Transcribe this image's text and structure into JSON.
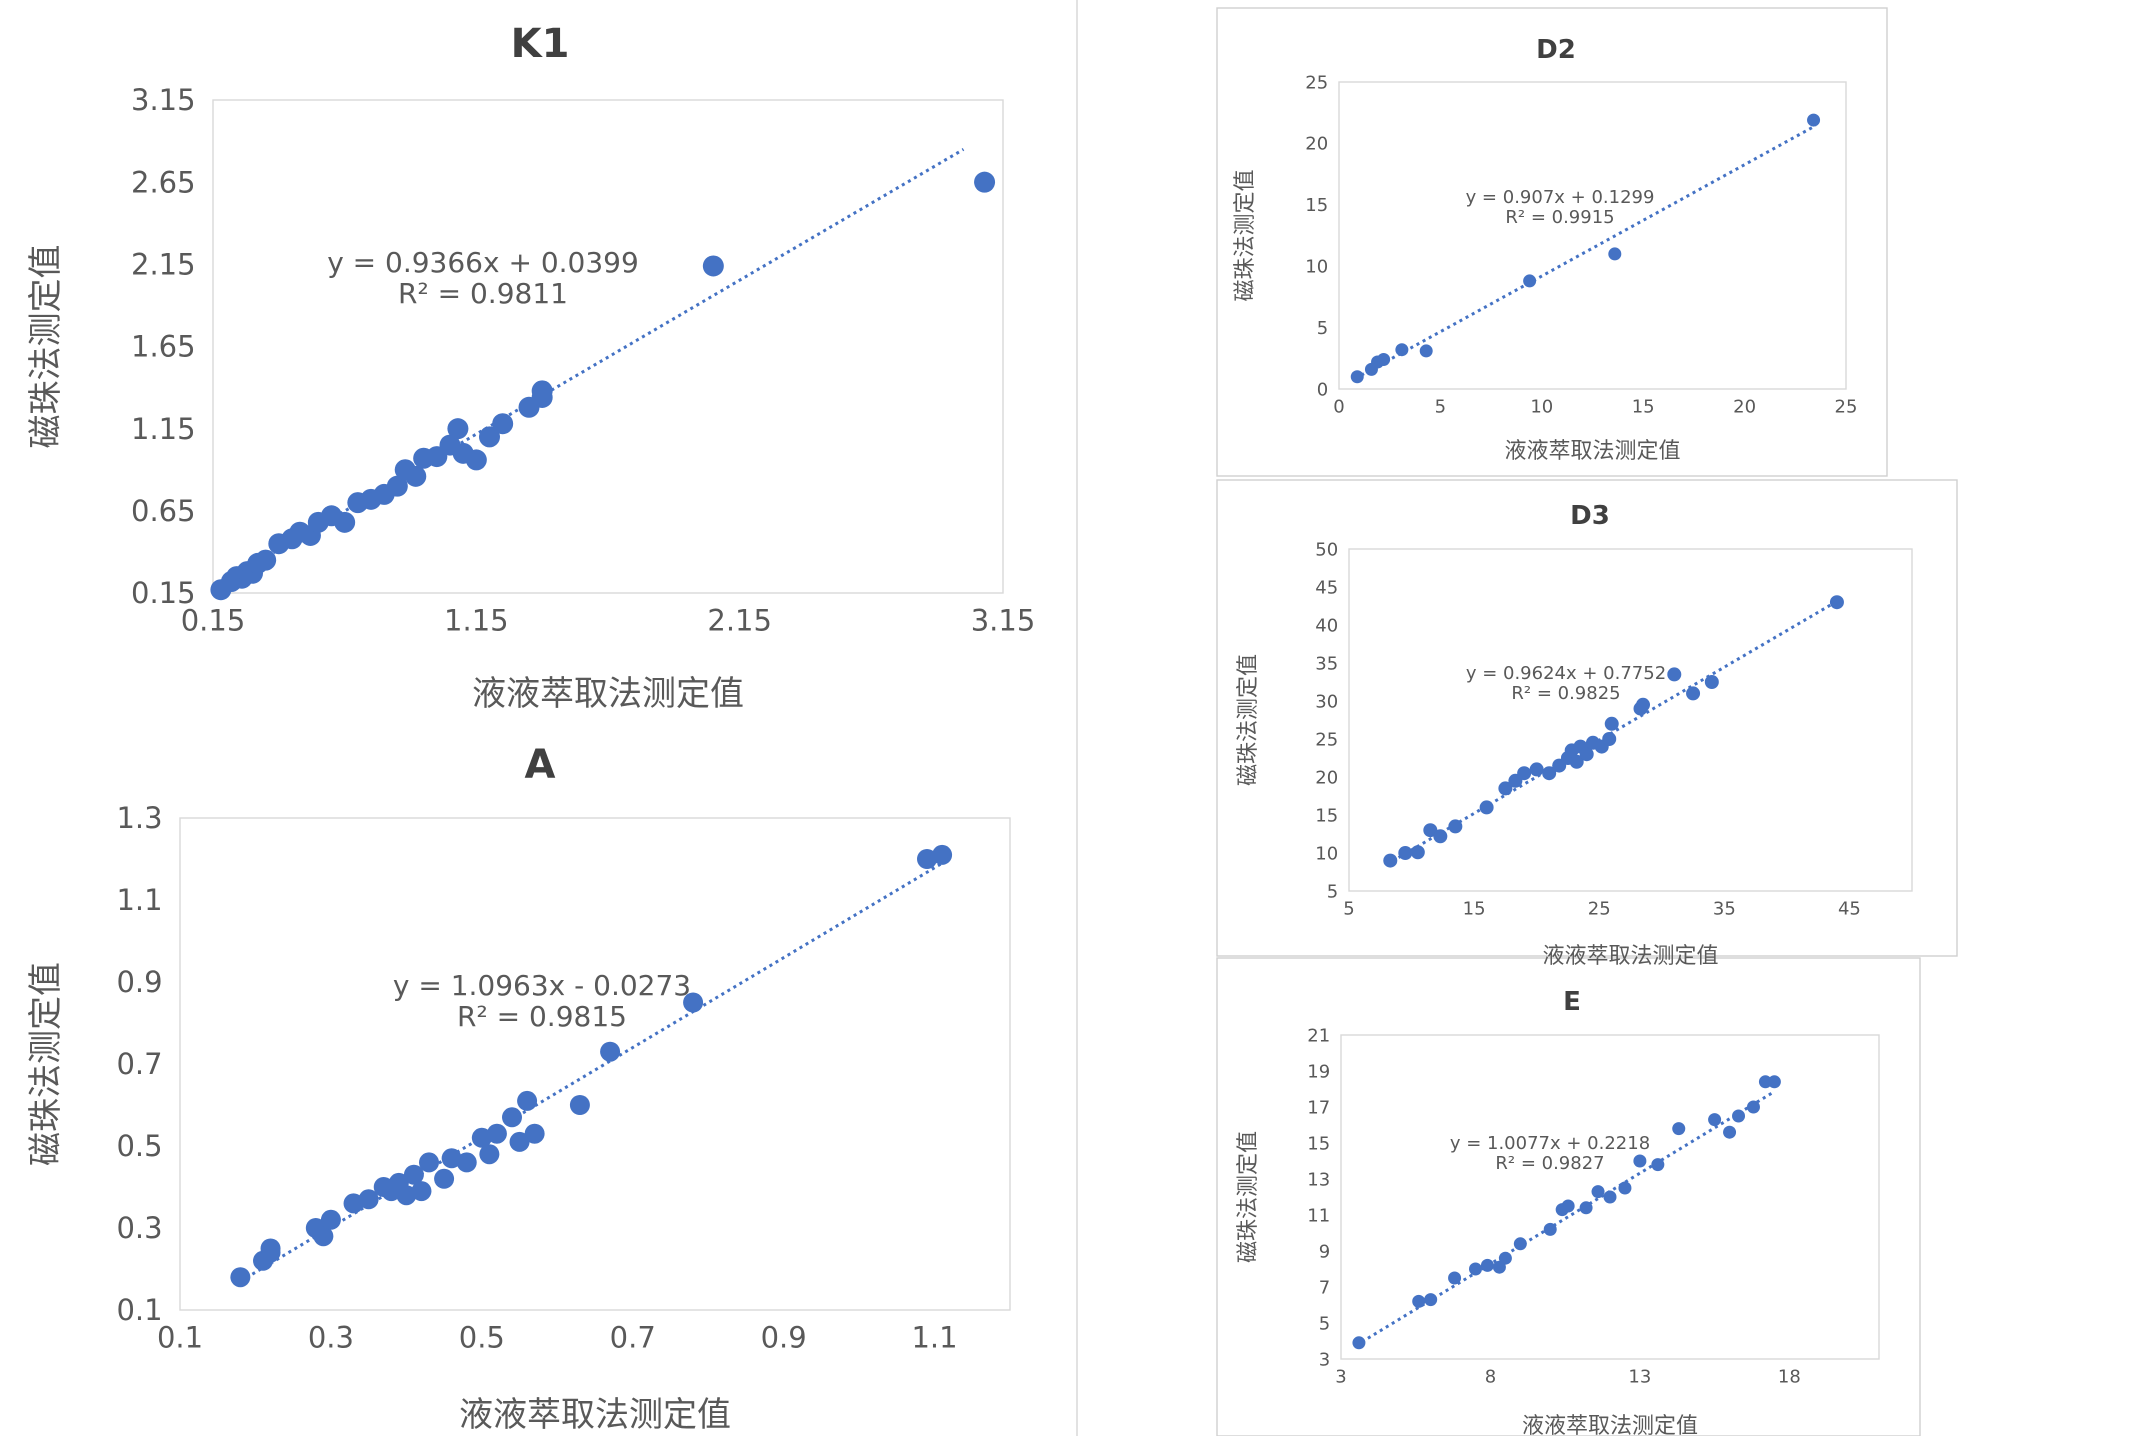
{
  "chart_data": [
    {
      "type": "scatter",
      "title": "K1",
      "xlabel": "液液萃取法测定值",
      "ylabel": "磁珠法测定值",
      "xlim": [
        0.15,
        3.15
      ],
      "ylim": [
        0.15,
        3.15
      ],
      "xticks": [
        "0.15",
        "1.15",
        "2.15",
        "3.15"
      ],
      "yticks": [
        "0.15",
        "0.65",
        "1.15",
        "1.65",
        "2.15",
        "2.65",
        "3.15"
      ],
      "equation": "y = 0.9366x + 0.0399",
      "r2": "R² = 0.9811",
      "trendline": {
        "slope": 0.9366,
        "intercept": 0.0399,
        "x_range": [
          0.15,
          3.0
        ]
      },
      "series": [
        {
          "x": [
            0.18,
            0.22,
            0.24,
            0.26,
            0.28,
            0.3,
            0.32,
            0.35,
            0.4,
            0.45,
            0.48,
            0.52,
            0.55,
            0.6,
            0.65,
            0.7,
            0.75,
            0.8,
            0.85,
            0.88,
            0.92,
            0.95,
            1.0,
            1.05,
            1.08,
            1.1,
            1.15,
            1.2,
            1.25,
            1.35,
            1.4,
            1.4,
            2.05,
            3.08
          ],
          "y": [
            0.17,
            0.22,
            0.25,
            0.24,
            0.28,
            0.27,
            0.33,
            0.35,
            0.45,
            0.48,
            0.52,
            0.5,
            0.58,
            0.62,
            0.58,
            0.7,
            0.72,
            0.75,
            0.8,
            0.9,
            0.86,
            0.97,
            0.98,
            1.05,
            1.15,
            1.0,
            0.96,
            1.1,
            1.18,
            1.28,
            1.34,
            1.38,
            2.14,
            2.65
          ]
        }
      ]
    },
    {
      "type": "scatter",
      "title": "A",
      "xlabel": "液液萃取法测定值",
      "ylabel": "磁珠法测定值",
      "xlim": [
        0.1,
        1.2
      ],
      "ylim": [
        0.1,
        1.3
      ],
      "xticks": [
        "0.1",
        "0.3",
        "0.5",
        "0.7",
        "0.9",
        "1.1"
      ],
      "yticks": [
        "0.1",
        "0.3",
        "0.5",
        "0.7",
        "0.9",
        "1.1",
        "1.3"
      ],
      "equation": "y = 1.0963x - 0.0273",
      "r2": "R² = 0.9815",
      "trendline": {
        "slope": 1.0963,
        "intercept": -0.0273,
        "x_range": [
          0.18,
          1.11
        ]
      },
      "series": [
        {
          "x": [
            0.18,
            0.21,
            0.22,
            0.22,
            0.28,
            0.29,
            0.3,
            0.33,
            0.35,
            0.37,
            0.38,
            0.39,
            0.4,
            0.41,
            0.42,
            0.43,
            0.45,
            0.46,
            0.48,
            0.5,
            0.51,
            0.52,
            0.54,
            0.55,
            0.56,
            0.57,
            0.63,
            0.67,
            0.78,
            1.09,
            1.11
          ],
          "y": [
            0.18,
            0.22,
            0.24,
            0.25,
            0.3,
            0.28,
            0.32,
            0.36,
            0.37,
            0.4,
            0.39,
            0.41,
            0.38,
            0.43,
            0.39,
            0.46,
            0.42,
            0.47,
            0.46,
            0.52,
            0.48,
            0.53,
            0.57,
            0.51,
            0.61,
            0.53,
            0.6,
            0.73,
            0.85,
            1.2,
            1.21
          ]
        }
      ]
    },
    {
      "type": "scatter",
      "title": "D2",
      "xlabel": "液液萃取法测定值",
      "ylabel": "磁珠法测定值",
      "xlim": [
        0,
        25
      ],
      "ylim": [
        0,
        25
      ],
      "xticks": [
        "0",
        "5",
        "10",
        "15",
        "20",
        "25"
      ],
      "yticks": [
        "0",
        "5",
        "10",
        "15",
        "20",
        "25"
      ],
      "equation": "y = 0.907x + 0.1299",
      "r2": "R² = 0.9915",
      "trendline": {
        "slope": 0.907,
        "intercept": 0.1299,
        "x_range": [
          0.8,
          23.5
        ]
      },
      "series": [
        {
          "x": [
            0.9,
            1.6,
            1.9,
            2.2,
            3.1,
            4.3,
            9.4,
            13.6,
            23.4
          ],
          "y": [
            1.0,
            1.6,
            2.2,
            2.4,
            3.2,
            3.1,
            8.8,
            11.0,
            21.9
          ]
        }
      ]
    },
    {
      "type": "scatter",
      "title": "D3",
      "xlabel": "液液萃取法测定值",
      "ylabel": "磁珠法测定值",
      "xlim": [
        5,
        50
      ],
      "ylim": [
        5,
        50
      ],
      "xticks": [
        "5",
        "15",
        "25",
        "35",
        "45"
      ],
      "yticks": [
        "5",
        "10",
        "15",
        "20",
        "25",
        "30",
        "35",
        "40",
        "45",
        "50"
      ],
      "equation": "y = 0.9624x + 0.7752",
      "r2": "R² = 0.9825",
      "trendline": {
        "slope": 0.9624,
        "intercept": 0.7752,
        "x_range": [
          8,
          44
        ]
      },
      "series": [
        {
          "x": [
            8.3,
            9.5,
            10.5,
            11.5,
            12.3,
            13.5,
            16.0,
            17.5,
            18.3,
            19.0,
            20.0,
            21.0,
            21.8,
            22.5,
            22.8,
            23.2,
            23.5,
            24.0,
            24.5,
            25.2,
            25.8,
            26.0,
            28.3,
            28.5,
            31.0,
            32.5,
            34.0,
            44.0
          ],
          "y": [
            9.0,
            10.0,
            10.1,
            13.0,
            12.2,
            13.5,
            16.0,
            18.5,
            19.5,
            20.5,
            21.0,
            20.5,
            21.5,
            22.5,
            23.5,
            22.0,
            24.0,
            23.0,
            24.5,
            24.0,
            25.0,
            27.0,
            29.0,
            29.5,
            33.5,
            31.0,
            32.5,
            43.0
          ]
        }
      ]
    },
    {
      "type": "scatter",
      "title": "E",
      "xlabel": "液液萃取法测定值",
      "ylabel": "磁珠法测定值",
      "xlim": [
        3,
        21
      ],
      "ylim": [
        3,
        21
      ],
      "xticks": [
        "3",
        "8",
        "13",
        "18"
      ],
      "yticks": [
        "3",
        "5",
        "7",
        "9",
        "11",
        "13",
        "15",
        "17",
        "19",
        "21"
      ],
      "equation": "y = 1.0077x + 0.2218",
      "r2": "R² = 0.9827",
      "trendline": {
        "slope": 1.0077,
        "intercept": 0.2218,
        "x_range": [
          3.5,
          17.5
        ]
      },
      "series": [
        {
          "x": [
            3.6,
            5.6,
            6.0,
            6.8,
            7.5,
            7.9,
            8.3,
            8.5,
            9.0,
            10.0,
            10.4,
            10.6,
            11.2,
            11.6,
            12.0,
            12.5,
            13.0,
            13.6,
            14.3,
            15.5,
            16.0,
            16.3,
            16.8,
            17.2,
            17.5
          ],
          "y": [
            3.9,
            6.2,
            6.3,
            7.5,
            8.0,
            8.2,
            8.1,
            8.6,
            9.4,
            10.2,
            11.3,
            11.5,
            11.4,
            12.3,
            12.0,
            12.5,
            14.0,
            13.8,
            15.8,
            16.3,
            15.6,
            16.5,
            17.0,
            18.4,
            18.4
          ]
        }
      ]
    }
  ]
}
